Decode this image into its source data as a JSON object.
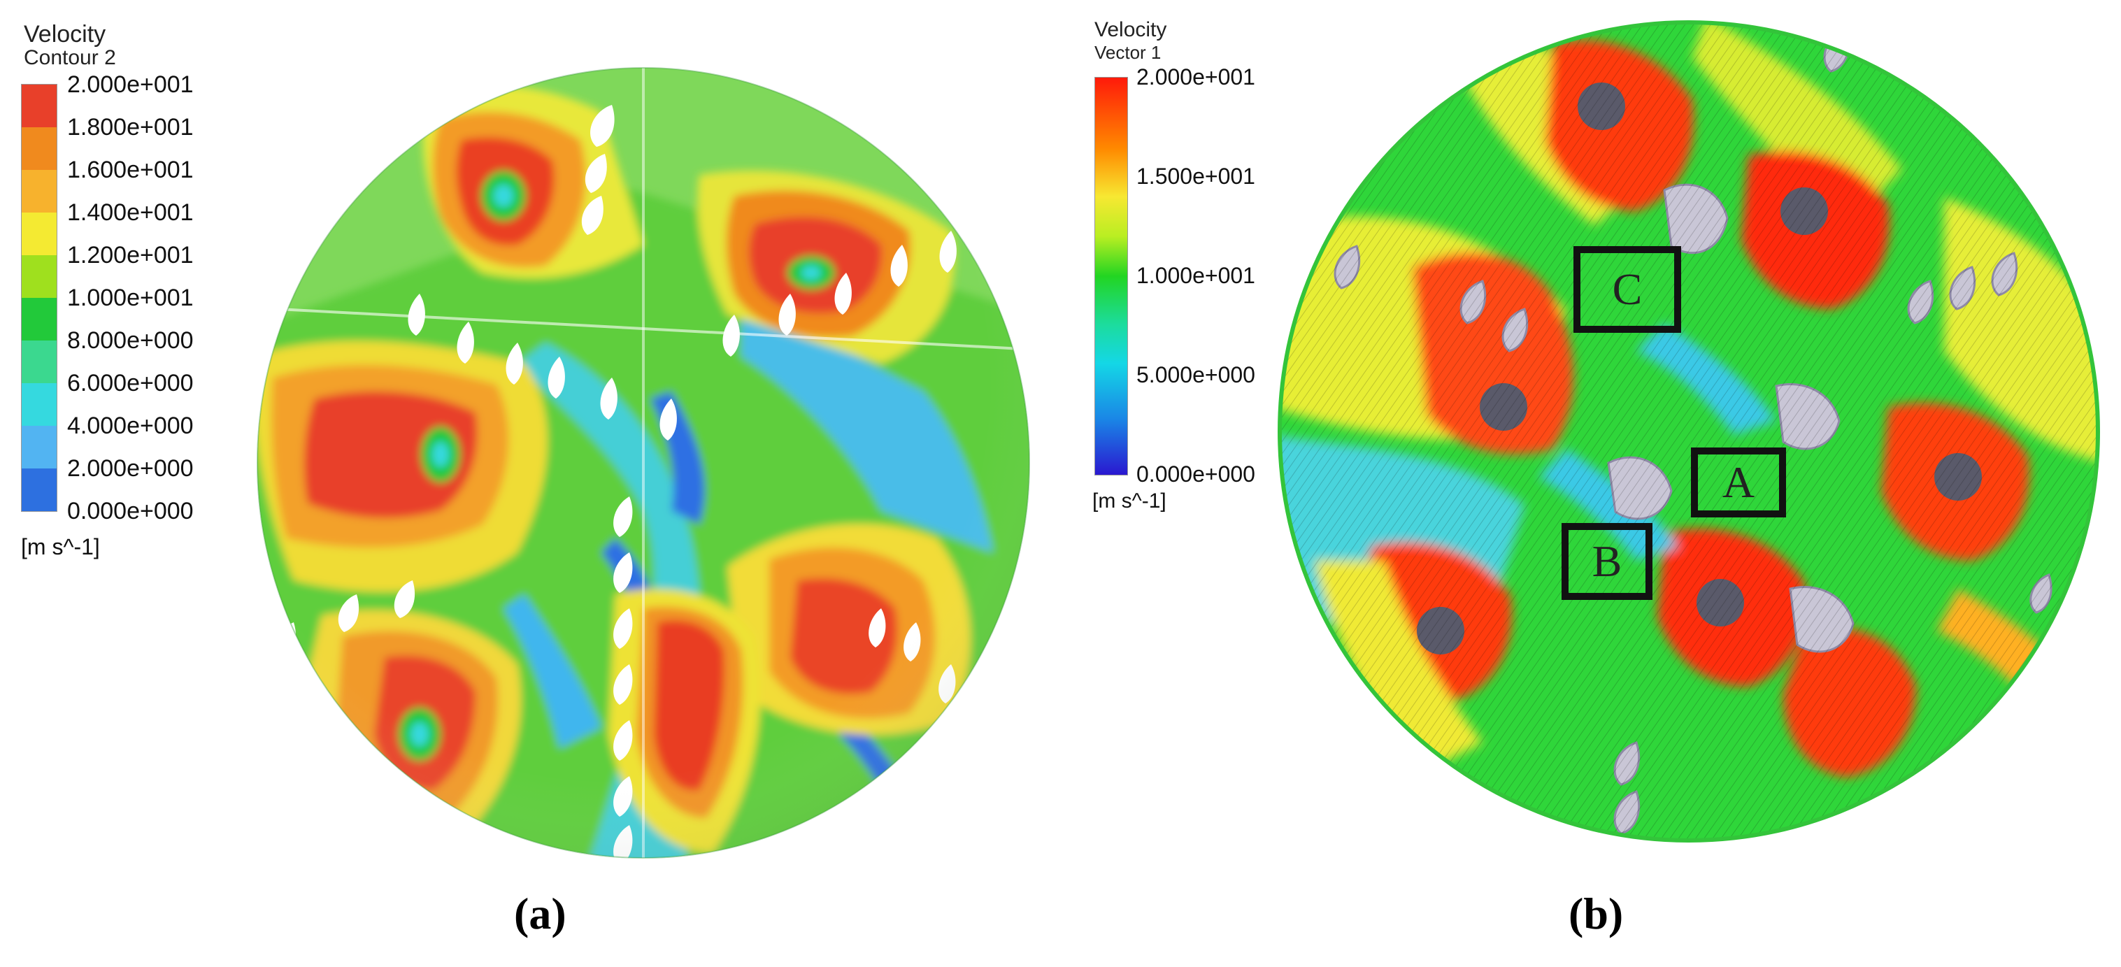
{
  "panel_a": {
    "legend": {
      "title": "Velocity",
      "subtitle": "Contour 2",
      "ticks": [
        "2.000e+001",
        "1.800e+001",
        "1.600e+001",
        "1.400e+001",
        "1.200e+001",
        "1.000e+001",
        "8.000e+000",
        "6.000e+000",
        "4.000e+000",
        "2.000e+000",
        "0.000e+000"
      ],
      "unit": "[m s^-1]",
      "colors": [
        "#e8402a",
        "#f08a1e",
        "#f7b22d",
        "#f4ea32",
        "#9fe01e",
        "#22c93a",
        "#3bd88f",
        "#35d9df",
        "#52b4f2",
        "#2d70e0",
        "#1e3ed6"
      ]
    },
    "caption": "(a)"
  },
  "panel_b": {
    "legend": {
      "title": "Velocity",
      "subtitle": "Vector 1",
      "ticks": [
        "2.000e+001",
        "1.500e+001",
        "1.000e+001",
        "5.000e+000",
        "0.000e+000"
      ],
      "unit": "[m s^-1]"
    },
    "boxes": [
      "C",
      "A",
      "B"
    ],
    "caption": "(b)"
  }
}
